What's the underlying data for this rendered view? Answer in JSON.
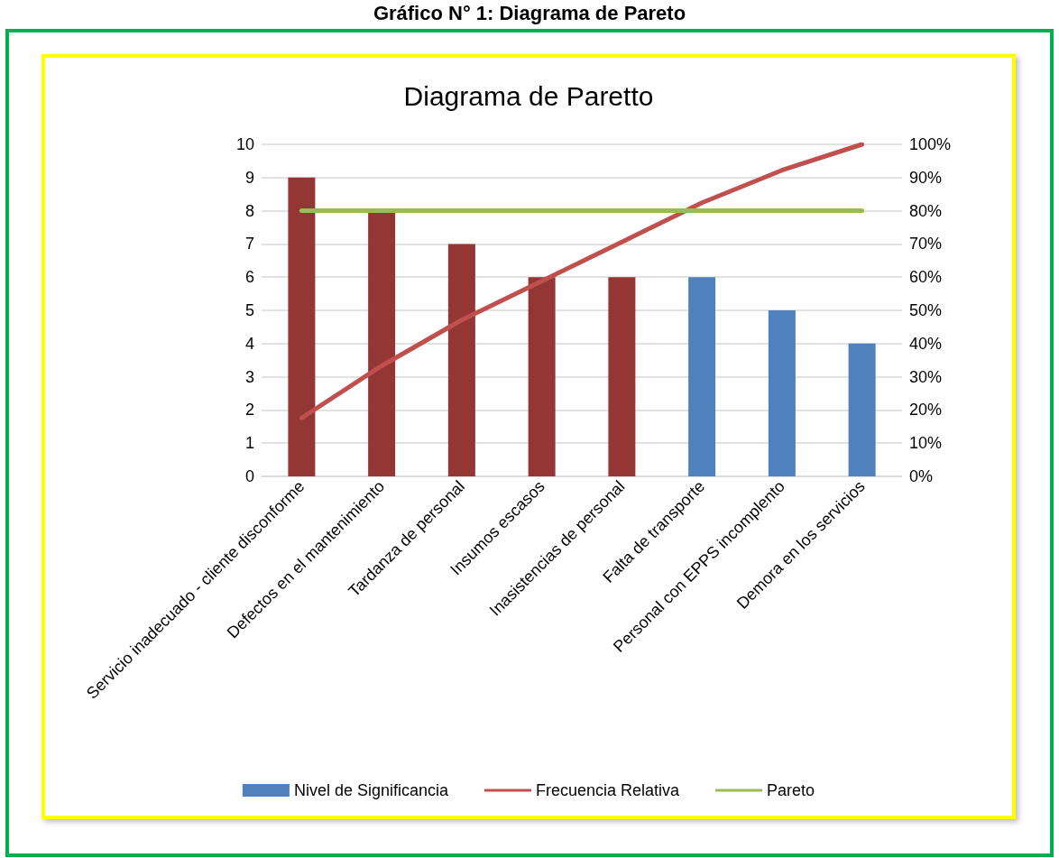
{
  "chart_data": {
    "type": "bar",
    "title": "Diagrama de Paretto",
    "annotations": [
      "Gráfico N° 1: Diagrama de Pareto"
    ],
    "categories": [
      "Servicio inadecuado - cliente disconforme",
      "Defectos en el mantenimiento",
      "Tardanza de personal",
      "Insumos escasos",
      "Inasistencias de personal",
      "Falta de transporte",
      "Personal con EPPS incomplento",
      "Demora en los servicios"
    ],
    "series": [
      {
        "name": "Nivel de Significancia",
        "color": "#4f81bd",
        "colors": [
          "#943634",
          "#943634",
          "#943634",
          "#943634",
          "#943634",
          "#4f81bd",
          "#4f81bd",
          "#4f81bd"
        ],
        "values": [
          9,
          8,
          7,
          6,
          6,
          6,
          5,
          4
        ]
      },
      {
        "name": "Frecuencia Relativa",
        "type": "line",
        "axis": "y2",
        "color": "#c0504d",
        "values": [
          17.6,
          33.3,
          47.1,
          58.8,
          70.6,
          82.4,
          92.2,
          100
        ]
      },
      {
        "name": "Pareto",
        "type": "line",
        "axis": "y2",
        "color": "#9bbb59",
        "values": [
          80,
          80,
          80,
          80,
          80,
          80,
          80,
          80
        ]
      }
    ],
    "ylim": [
      0,
      10
    ],
    "yticks": [
      0,
      1,
      2,
      3,
      4,
      5,
      6,
      7,
      8,
      9,
      10
    ],
    "y2lim": [
      0,
      100
    ],
    "y2ticks": [
      {
        "value": 0,
        "label": "0%"
      },
      {
        "value": 10,
        "label": "10%"
      },
      {
        "value": 20,
        "label": "20%"
      },
      {
        "value": 30,
        "label": "30%"
      },
      {
        "value": 40,
        "label": "40%"
      },
      {
        "value": 50,
        "label": "50%"
      },
      {
        "value": 60,
        "label": "60%"
      },
      {
        "value": 70,
        "label": "70%"
      },
      {
        "value": 80,
        "label": "80%"
      },
      {
        "value": 90,
        "label": "90%"
      },
      {
        "value": 100,
        "label": "100%"
      }
    ],
    "grid": "y",
    "legend": "bottom",
    "marker": "none",
    "line_style": "solid"
  }
}
